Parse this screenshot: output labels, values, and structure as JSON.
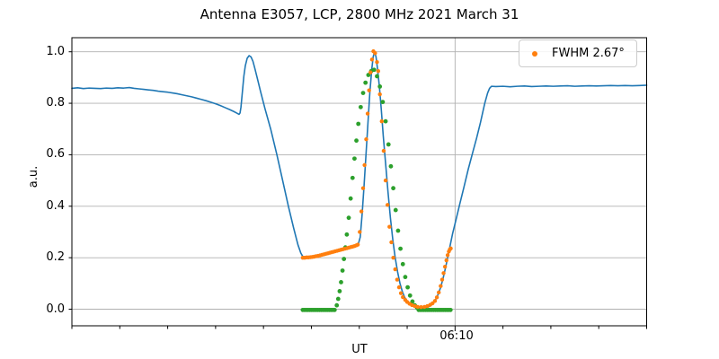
{
  "chart_data": {
    "type": "line",
    "title": "Antenna E3057, LCP, 2800 MHz 2021 March 31",
    "xlabel": "UT",
    "ylabel": "a.u.",
    "grid": true,
    "x_axis": {
      "start_time": "04:50",
      "end_time": "06:50",
      "unit": "minutes_after_04:50_UT",
      "range_min": [
        0,
        120
      ],
      "minor_tick_interval_min": 10,
      "major_ticks": [
        {
          "t_min": 80,
          "label": "06:10"
        }
      ]
    },
    "y_axis": {
      "ticks": [
        "1.0",
        "0.8",
        "0.6",
        "0.4",
        "0.2",
        "0.0"
      ],
      "tick_values": [
        1.0,
        0.8,
        0.6,
        0.4,
        0.2,
        0.0
      ],
      "lim": [
        -0.065,
        1.055
      ]
    },
    "legend": {
      "position": "upper right",
      "entries": [
        {
          "label": "FWHM 2.67°",
          "marker": "dot",
          "color": "#ff7f0e"
        }
      ]
    },
    "colors": {
      "signal": "#1f77b4",
      "fit_samples": "#ff7f0e",
      "model": "#2ca02c",
      "grid": "#b0b0b0",
      "spine": "#000000"
    },
    "series": [
      {
        "name": "antenna-signal",
        "kind": "line",
        "color": "#1f77b4",
        "line_width": 1.6,
        "points": [
          [
            0,
            0.858
          ],
          [
            1.2,
            0.86
          ],
          [
            2.4,
            0.857
          ],
          [
            3.6,
            0.859
          ],
          [
            4.8,
            0.858
          ],
          [
            6,
            0.857
          ],
          [
            7.2,
            0.859
          ],
          [
            8.4,
            0.858
          ],
          [
            9.6,
            0.86
          ],
          [
            10.8,
            0.859
          ],
          [
            12,
            0.861
          ],
          [
            13,
            0.858
          ],
          [
            14,
            0.856
          ],
          [
            15,
            0.854
          ],
          [
            16,
            0.852
          ],
          [
            17,
            0.85
          ],
          [
            18,
            0.847
          ],
          [
            19,
            0.845
          ],
          [
            20,
            0.843
          ],
          [
            21,
            0.84
          ],
          [
            22,
            0.837
          ],
          [
            23,
            0.833
          ],
          [
            24,
            0.829
          ],
          [
            25,
            0.825
          ],
          [
            26,
            0.82
          ],
          [
            27,
            0.815
          ],
          [
            28,
            0.81
          ],
          [
            29,
            0.804
          ],
          [
            30,
            0.798
          ],
          [
            31,
            0.791
          ],
          [
            32,
            0.783
          ],
          [
            33,
            0.775
          ],
          [
            33.8,
            0.768
          ],
          [
            34.4,
            0.762
          ],
          [
            34.9,
            0.757
          ],
          [
            35.1,
            0.762
          ],
          [
            35.3,
            0.785
          ],
          [
            35.6,
            0.845
          ],
          [
            35.9,
            0.905
          ],
          [
            36.2,
            0.945
          ],
          [
            36.6,
            0.975
          ],
          [
            37,
            0.985
          ],
          [
            37.4,
            0.98
          ],
          [
            37.8,
            0.963
          ],
          [
            38.2,
            0.935
          ],
          [
            38.7,
            0.898
          ],
          [
            39.4,
            0.845
          ],
          [
            40.3,
            0.78
          ],
          [
            41.5,
            0.7
          ],
          [
            42.8,
            0.6
          ],
          [
            44,
            0.5
          ],
          [
            45.2,
            0.4
          ],
          [
            46.3,
            0.315
          ],
          [
            47.2,
            0.25
          ],
          [
            47.8,
            0.218
          ],
          [
            48.2,
            0.205
          ],
          [
            49,
            0.201
          ],
          [
            50,
            0.202
          ],
          [
            51,
            0.206
          ],
          [
            52,
            0.21
          ],
          [
            53,
            0.215
          ],
          [
            54,
            0.22
          ],
          [
            55,
            0.225
          ],
          [
            56,
            0.229
          ],
          [
            57,
            0.234
          ],
          [
            58,
            0.239
          ],
          [
            58.8,
            0.243
          ],
          [
            59.4,
            0.247
          ],
          [
            59.8,
            0.253
          ],
          [
            60.2,
            0.28
          ],
          [
            60.6,
            0.37
          ],
          [
            61,
            0.48
          ],
          [
            61.4,
            0.6
          ],
          [
            61.8,
            0.72
          ],
          [
            62.2,
            0.84
          ],
          [
            62.6,
            0.93
          ],
          [
            62.9,
            0.98
          ],
          [
            63.2,
            1.0
          ],
          [
            63.5,
            0.98
          ],
          [
            63.8,
            0.935
          ],
          [
            64.2,
            0.865
          ],
          [
            64.6,
            0.775
          ],
          [
            65,
            0.675
          ],
          [
            65.5,
            0.565
          ],
          [
            66,
            0.455
          ],
          [
            66.5,
            0.355
          ],
          [
            67,
            0.27
          ],
          [
            67.5,
            0.2
          ],
          [
            68,
            0.145
          ],
          [
            68.5,
            0.1
          ],
          [
            69,
            0.068
          ],
          [
            69.5,
            0.045
          ],
          [
            70.1,
            0.028
          ],
          [
            70.8,
            0.015
          ],
          [
            71.6,
            0.008
          ],
          [
            72.5,
            0.005
          ],
          [
            73.5,
            0.005
          ],
          [
            74.5,
            0.01
          ],
          [
            75.2,
            0.018
          ],
          [
            75.8,
            0.032
          ],
          [
            76.4,
            0.055
          ],
          [
            77,
            0.085
          ],
          [
            77.5,
            0.12
          ],
          [
            78,
            0.16
          ],
          [
            78.5,
            0.205
          ],
          [
            79,
            0.25
          ],
          [
            79.5,
            0.295
          ],
          [
            80.1,
            0.34
          ],
          [
            81,
            0.41
          ],
          [
            81.8,
            0.47
          ],
          [
            82.7,
            0.54
          ],
          [
            83.7,
            0.61
          ],
          [
            84.5,
            0.665
          ],
          [
            85.3,
            0.725
          ],
          [
            86.2,
            0.8
          ],
          [
            86.8,
            0.84
          ],
          [
            87.2,
            0.858
          ],
          [
            87.6,
            0.866
          ],
          [
            88.5,
            0.865
          ],
          [
            90,
            0.866
          ],
          [
            91.5,
            0.864
          ],
          [
            93,
            0.866
          ],
          [
            94.5,
            0.867
          ],
          [
            96,
            0.865
          ],
          [
            97.5,
            0.866
          ],
          [
            99,
            0.867
          ],
          [
            100.5,
            0.866
          ],
          [
            102,
            0.867
          ],
          [
            103.5,
            0.868
          ],
          [
            105,
            0.866
          ],
          [
            106.5,
            0.867
          ],
          [
            108,
            0.868
          ],
          [
            109.5,
            0.867
          ],
          [
            111,
            0.868
          ],
          [
            112.5,
            0.869
          ],
          [
            114,
            0.868
          ],
          [
            115.5,
            0.869
          ],
          [
            117,
            0.868
          ],
          [
            118.5,
            0.869
          ],
          [
            120,
            0.87
          ]
        ]
      },
      {
        "name": "gaussian-model",
        "kind": "scatter",
        "color": "#2ca02c",
        "marker_radius": 2.4,
        "points": [
          [
            48.2,
            -0.003
          ],
          [
            48.55,
            -0.003
          ],
          [
            48.9,
            -0.003
          ],
          [
            49.25,
            -0.003
          ],
          [
            49.6,
            -0.003
          ],
          [
            49.95,
            -0.003
          ],
          [
            50.3,
            -0.003
          ],
          [
            50.65,
            -0.003
          ],
          [
            51,
            -0.003
          ],
          [
            51.35,
            -0.003
          ],
          [
            51.7,
            -0.003
          ],
          [
            52.05,
            -0.003
          ],
          [
            52.4,
            -0.003
          ],
          [
            52.75,
            -0.003
          ],
          [
            53.1,
            -0.003
          ],
          [
            53.45,
            -0.003
          ],
          [
            53.8,
            -0.003
          ],
          [
            54.15,
            -0.003
          ],
          [
            54.5,
            -0.003
          ],
          [
            54.85,
            -0.003
          ],
          [
            55.3,
            0.015
          ],
          [
            55.6,
            0.04
          ],
          [
            55.9,
            0.07
          ],
          [
            56.2,
            0.105
          ],
          [
            56.5,
            0.15
          ],
          [
            56.8,
            0.195
          ],
          [
            57.1,
            0.24
          ],
          [
            57.4,
            0.29
          ],
          [
            57.8,
            0.355
          ],
          [
            58.2,
            0.43
          ],
          [
            58.6,
            0.51
          ],
          [
            59,
            0.585
          ],
          [
            59.4,
            0.655
          ],
          [
            59.8,
            0.72
          ],
          [
            60.3,
            0.785
          ],
          [
            60.8,
            0.84
          ],
          [
            61.3,
            0.88
          ],
          [
            61.9,
            0.91
          ],
          [
            62.5,
            0.925
          ],
          [
            63.1,
            0.93
          ],
          [
            63.7,
            0.905
          ],
          [
            64.3,
            0.865
          ],
          [
            64.9,
            0.805
          ],
          [
            65.5,
            0.73
          ],
          [
            66.1,
            0.64
          ],
          [
            66.6,
            0.555
          ],
          [
            67.1,
            0.47
          ],
          [
            67.6,
            0.385
          ],
          [
            68.1,
            0.305
          ],
          [
            68.6,
            0.235
          ],
          [
            69.1,
            0.175
          ],
          [
            69.6,
            0.125
          ],
          [
            70.1,
            0.085
          ],
          [
            70.6,
            0.053
          ],
          [
            71.1,
            0.03
          ],
          [
            71.6,
            0.015
          ],
          [
            72.1,
            0.005
          ],
          [
            72.4,
            -0.003
          ],
          [
            72.75,
            -0.003
          ],
          [
            73.1,
            -0.003
          ],
          [
            73.45,
            -0.003
          ],
          [
            73.8,
            -0.003
          ],
          [
            74.15,
            -0.003
          ],
          [
            74.5,
            -0.003
          ],
          [
            74.85,
            -0.003
          ],
          [
            75.2,
            -0.003
          ],
          [
            75.55,
            -0.003
          ],
          [
            75.9,
            -0.003
          ],
          [
            76.25,
            -0.003
          ],
          [
            76.6,
            -0.003
          ],
          [
            76.95,
            -0.003
          ],
          [
            77.3,
            -0.003
          ],
          [
            77.65,
            -0.003
          ],
          [
            78,
            -0.003
          ],
          [
            78.35,
            -0.003
          ],
          [
            78.7,
            -0.003
          ],
          [
            79.05,
            -0.003
          ]
        ]
      },
      {
        "name": "fwhm-fit-samples",
        "kind": "scatter",
        "color": "#ff7f0e",
        "marker_radius": 2.2,
        "points": [
          [
            48.2,
            0.2
          ],
          [
            48.6,
            0.2
          ],
          [
            49,
            0.201
          ],
          [
            49.4,
            0.201
          ],
          [
            49.8,
            0.202
          ],
          [
            50.2,
            0.203
          ],
          [
            50.6,
            0.204
          ],
          [
            51,
            0.206
          ],
          [
            51.4,
            0.207
          ],
          [
            51.8,
            0.209
          ],
          [
            52.2,
            0.211
          ],
          [
            52.6,
            0.213
          ],
          [
            53,
            0.215
          ],
          [
            53.4,
            0.217
          ],
          [
            53.8,
            0.219
          ],
          [
            54.2,
            0.221
          ],
          [
            54.6,
            0.223
          ],
          [
            55,
            0.225
          ],
          [
            55.4,
            0.227
          ],
          [
            55.8,
            0.229
          ],
          [
            56.2,
            0.231
          ],
          [
            56.6,
            0.233
          ],
          [
            57,
            0.235
          ],
          [
            57.4,
            0.237
          ],
          [
            57.8,
            0.239
          ],
          [
            58.2,
            0.241
          ],
          [
            58.6,
            0.243
          ],
          [
            59,
            0.245
          ],
          [
            59.4,
            0.248
          ],
          [
            59.7,
            0.251
          ],
          [
            60.1,
            0.3
          ],
          [
            60.45,
            0.38
          ],
          [
            60.8,
            0.47
          ],
          [
            61.1,
            0.56
          ],
          [
            61.45,
            0.66
          ],
          [
            61.75,
            0.76
          ],
          [
            62.05,
            0.85
          ],
          [
            62.35,
            0.92
          ],
          [
            62.65,
            0.97
          ],
          [
            62.95,
            1.002
          ],
          [
            63.3,
            0.995
          ],
          [
            63.7,
            0.96
          ],
          [
            63.95,
            0.925
          ],
          [
            64.3,
            0.835
          ],
          [
            64.7,
            0.73
          ],
          [
            65.1,
            0.615
          ],
          [
            65.5,
            0.5
          ],
          [
            65.9,
            0.405
          ],
          [
            66.3,
            0.32
          ],
          [
            66.7,
            0.26
          ],
          [
            67.1,
            0.2
          ],
          [
            67.5,
            0.155
          ],
          [
            67.9,
            0.115
          ],
          [
            68.3,
            0.085
          ],
          [
            68.7,
            0.062
          ],
          [
            69.1,
            0.047
          ],
          [
            69.6,
            0.036
          ],
          [
            70,
            0.028
          ],
          [
            70.5,
            0.021
          ],
          [
            71,
            0.016
          ],
          [
            71.6,
            0.012
          ],
          [
            72.2,
            0.009
          ],
          [
            72.9,
            0.008
          ],
          [
            73.6,
            0.009
          ],
          [
            74.2,
            0.012
          ],
          [
            74.8,
            0.017
          ],
          [
            75.3,
            0.023
          ],
          [
            75.8,
            0.032
          ],
          [
            76.2,
            0.046
          ],
          [
            76.6,
            0.065
          ],
          [
            77,
            0.09
          ],
          [
            77.3,
            0.115
          ],
          [
            77.6,
            0.14
          ],
          [
            77.9,
            0.165
          ],
          [
            78.2,
            0.19
          ],
          [
            78.45,
            0.21
          ],
          [
            78.7,
            0.224
          ],
          [
            78.9,
            0.232
          ],
          [
            79.1,
            0.236
          ]
        ]
      }
    ]
  }
}
